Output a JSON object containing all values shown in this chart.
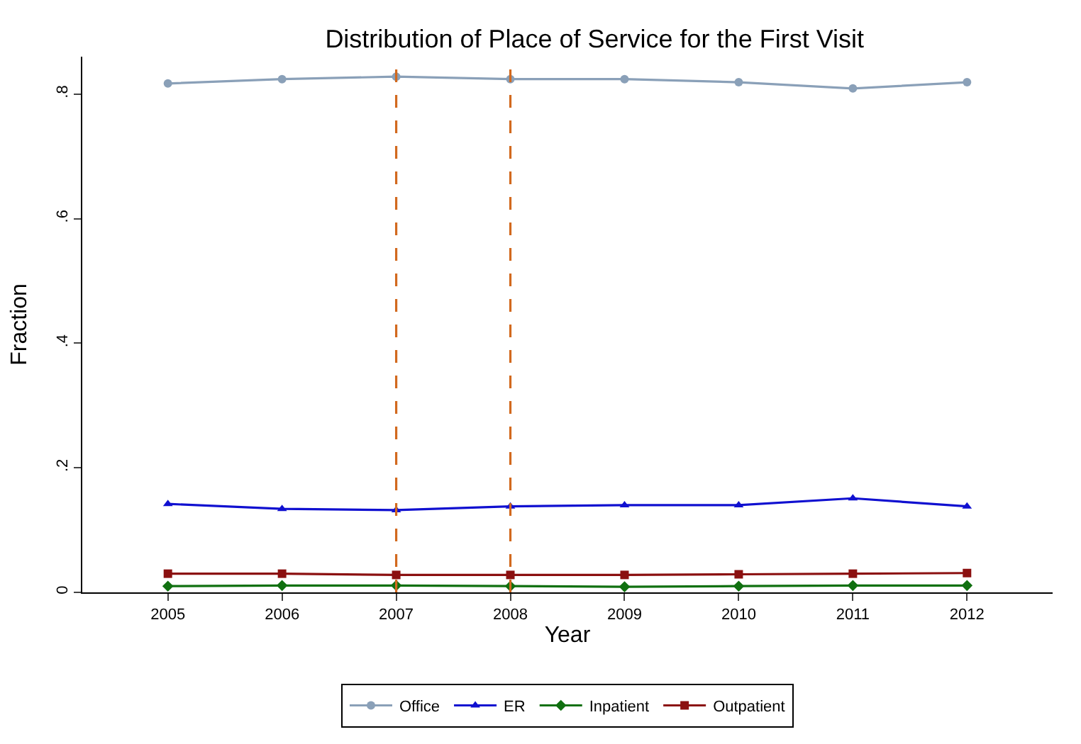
{
  "chart_data": {
    "type": "line",
    "title": "Distribution of Place of Service for the First Visit",
    "xlabel": "Year",
    "ylabel": "Fraction",
    "x": [
      2005,
      2006,
      2007,
      2008,
      2009,
      2010,
      2011,
      2012
    ],
    "series": [
      {
        "name": "Office",
        "color": "#8aa0b8",
        "values": [
          0.817,
          0.824,
          0.828,
          0.824,
          0.824,
          0.819,
          0.809,
          0.819
        ]
      },
      {
        "name": "ER",
        "color": "#1010d0",
        "marker": "triangle",
        "values": [
          0.142,
          0.134,
          0.132,
          0.138,
          0.14,
          0.14,
          0.151,
          0.138
        ]
      },
      {
        "name": "Inpatient",
        "color": "#107010",
        "marker": "diamond",
        "values": [
          0.01,
          0.011,
          0.011,
          0.01,
          0.009,
          0.01,
          0.011,
          0.011
        ]
      },
      {
        "name": "Outpatient",
        "color": "#8b1010",
        "marker": "square",
        "values": [
          0.03,
          0.03,
          0.028,
          0.028,
          0.028,
          0.029,
          0.03,
          0.031
        ]
      }
    ],
    "marker": "circle",
    "xlim": [
      2004.25,
      2012.75
    ],
    "ylim": [
      0,
      0.86
    ],
    "xticks": [
      2005,
      2006,
      2007,
      2008,
      2009,
      2010,
      2011,
      2012
    ],
    "yticks": [
      {
        "value": 0,
        "label": "0"
      },
      {
        "value": 0.2,
        "label": ".2"
      },
      {
        "value": 0.4,
        "label": ".4"
      },
      {
        "value": 0.6,
        "label": ".6"
      },
      {
        "value": 0.8,
        "label": ".8"
      }
    ],
    "ref_lines": [
      {
        "axis": "x",
        "value": 2007,
        "color": "#d2691e",
        "line_style": "dashed"
      },
      {
        "axis": "x",
        "value": 2008,
        "color": "#d2691e",
        "line_style": "dashed"
      }
    ],
    "legend": "bottom"
  }
}
